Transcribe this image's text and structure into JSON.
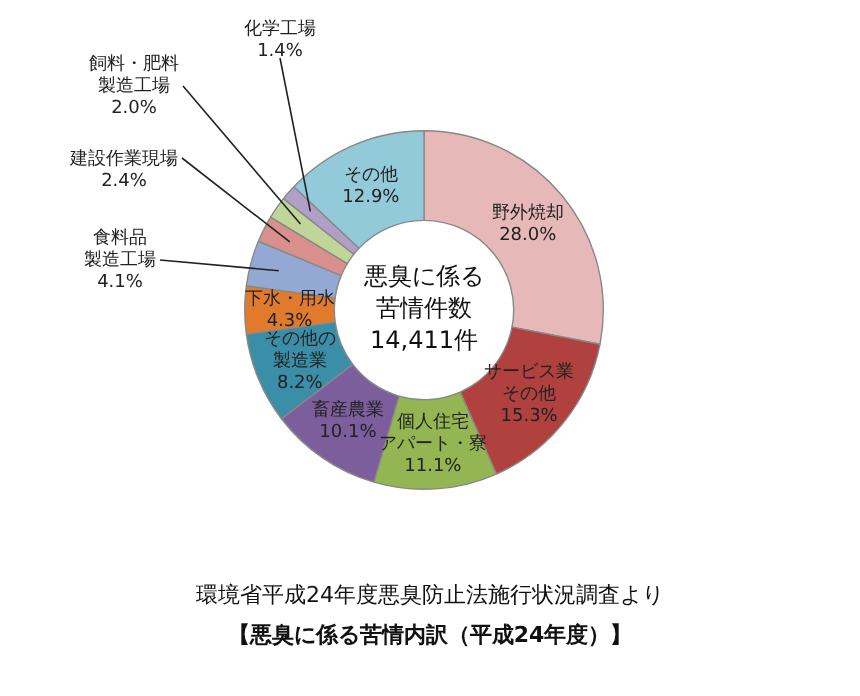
{
  "chart_data": {
    "type": "donut",
    "categories": [
      "野外焼却",
      "サービス業その他",
      "個人住宅アパート・寮",
      "畜産農業",
      "その他の製造業",
      "下水・用水",
      "食料品製造工場",
      "建設作業現場",
      "飼料・肥料製造工場",
      "化学工場",
      "その他"
    ],
    "values": [
      28.0,
      15.3,
      11.1,
      10.1,
      8.2,
      4.3,
      4.1,
      2.4,
      2.0,
      1.4,
      12.9
    ],
    "value_labels": [
      "28.0%",
      "15.3%",
      "11.1%",
      "10.1%",
      "8.2%",
      "4.3%",
      "4.1%",
      "2.4%",
      "2.0%",
      "1.4%",
      "12.9%"
    ],
    "colors": [
      "#e6b9b8",
      "#b0413e",
      "#93b552",
      "#7c5e9c",
      "#3a8ea8",
      "#e07b2e",
      "#93a9d4",
      "#d9908d",
      "#c0d699",
      "#b0a0c8",
      "#93cad9"
    ],
    "legend": false,
    "title": "【悪臭に係る苦情内訳（平成24年度）】",
    "annotations": [
      "悪臭に係る苦情件数14,411件",
      "環境省平成24年度悪臭防止法施行状況調査より"
    ]
  }
}
